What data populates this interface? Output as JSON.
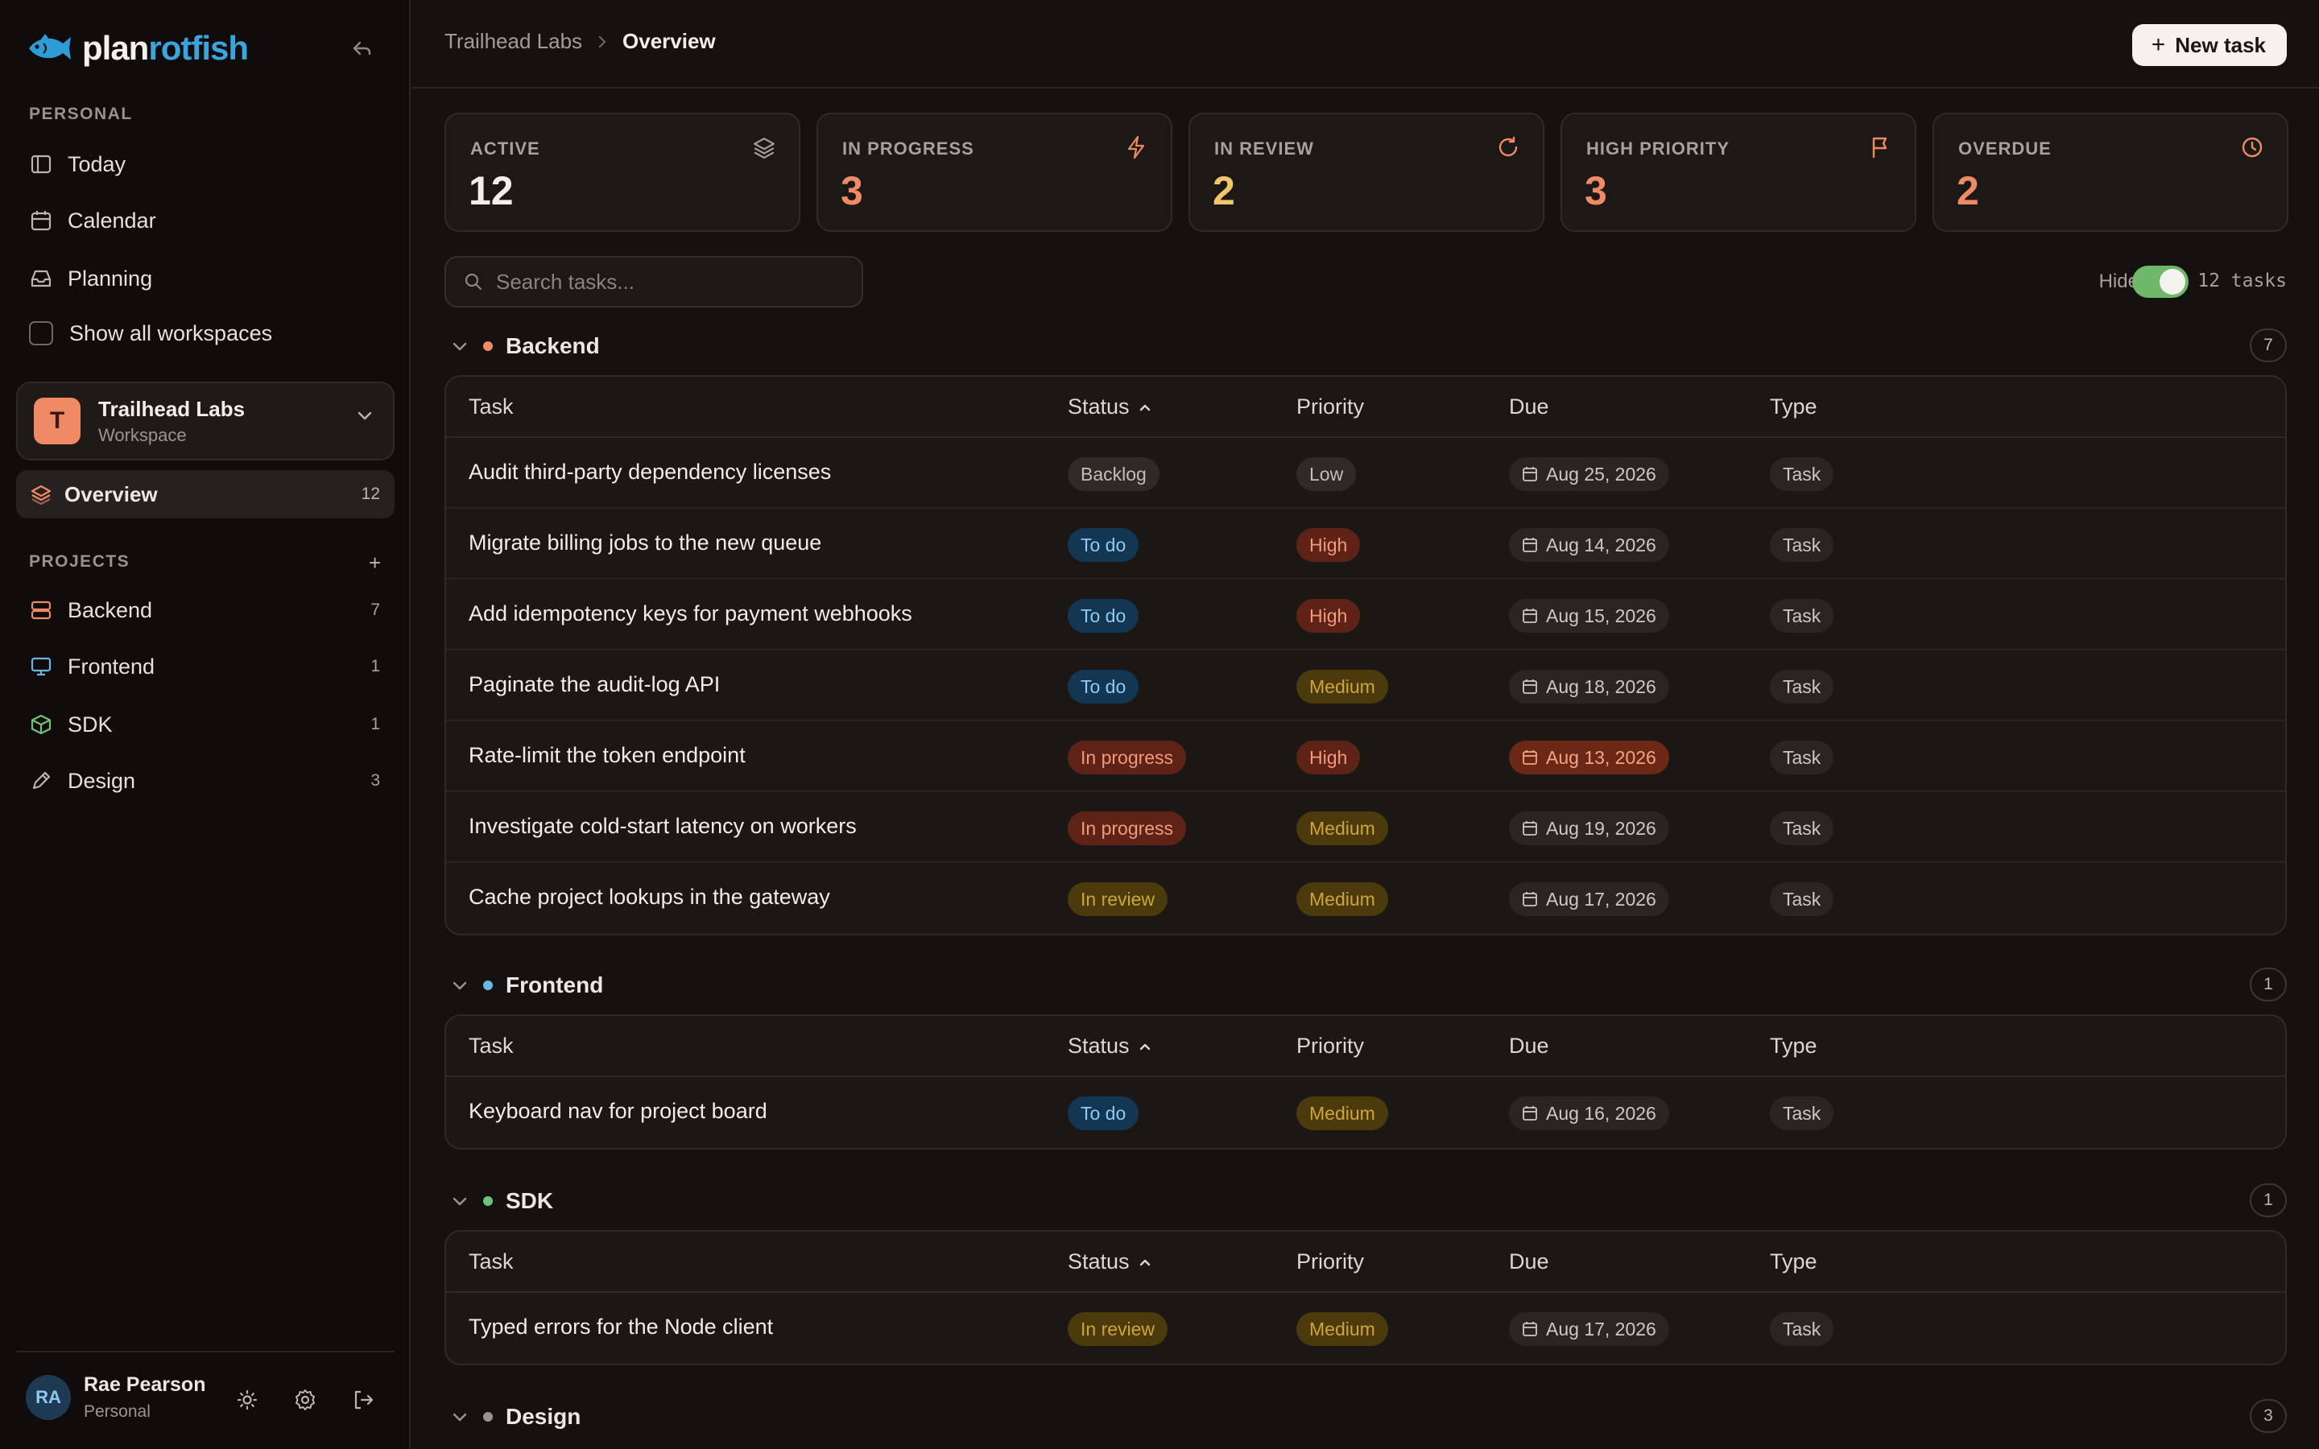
{
  "app": {
    "brand_part1": "plan",
    "brand_part2": "rotfish"
  },
  "sidebar": {
    "personal_label": "PERSONAL",
    "today": "Today",
    "calendar": "Calendar",
    "planning": "Planning",
    "show_all": "Show all workspaces",
    "workspace": {
      "initial": "T",
      "name": "Trailhead Labs",
      "sub": "Workspace"
    },
    "overview": {
      "label": "Overview",
      "count": "12"
    },
    "projects_label": "PROJECTS",
    "add_project": "+",
    "projects": [
      {
        "label": "Backend",
        "count": "7"
      },
      {
        "label": "Frontend",
        "count": "1"
      },
      {
        "label": "SDK",
        "count": "1"
      },
      {
        "label": "Design",
        "count": "3"
      }
    ],
    "user": {
      "initials": "RA",
      "name": "Rae Pearson",
      "sub": "Personal"
    }
  },
  "header": {
    "crumb_workspace": "Trailhead Labs",
    "crumb_page": "Overview",
    "new_task": "New task"
  },
  "stats": [
    {
      "label": "ACTIVE",
      "value": "12",
      "icon": "layers-icon",
      "color": "#f3eeea"
    },
    {
      "label": "IN PROGRESS",
      "value": "3",
      "icon": "bolt-icon",
      "color": "#f08a66"
    },
    {
      "label": "IN REVIEW",
      "value": "2",
      "icon": "refresh-icon",
      "color": "#f3c56b"
    },
    {
      "label": "HIGH PRIORITY",
      "value": "3",
      "icon": "flag-icon",
      "color": "#f08a66"
    },
    {
      "label": "OVERDUE",
      "value": "2",
      "icon": "clock-icon",
      "color": "#f08a66"
    }
  ],
  "toolbar": {
    "search_placeholder": "Search tasks...",
    "hide_done": "Hide done",
    "hide_done_on": true,
    "task_count": "12 tasks"
  },
  "columns": {
    "task": "Task",
    "status": "Status",
    "priority": "Priority",
    "due": "Due",
    "type": "Type"
  },
  "groups": [
    {
      "name": "Backend",
      "count": "7",
      "dot": "#f08a66",
      "rows": [
        {
          "task": "Audit third-party dependency licenses",
          "status": "Backlog",
          "priority": "Low",
          "due": "Aug 25, 2026",
          "type": "Task"
        },
        {
          "task": "Migrate billing jobs to the new queue",
          "status": "To do",
          "priority": "High",
          "due": "Aug 14, 2026",
          "type": "Task"
        },
        {
          "task": "Add idempotency keys for payment webhooks",
          "status": "To do",
          "priority": "High",
          "due": "Aug 15, 2026",
          "type": "Task"
        },
        {
          "task": "Paginate the audit-log API",
          "status": "To do",
          "priority": "Medium",
          "due": "Aug 18, 2026",
          "type": "Task"
        },
        {
          "task": "Rate-limit the token endpoint",
          "status": "In progress",
          "priority": "High",
          "due": "Aug 13, 2026",
          "type": "Task"
        },
        {
          "task": "Investigate cold-start latency on workers",
          "status": "In progress",
          "priority": "Medium",
          "due": "Aug 19, 2026",
          "type": "Task"
        },
        {
          "task": "Cache project lookups in the gateway",
          "status": "In review",
          "priority": "Medium",
          "due": "Aug 17, 2026",
          "type": "Task"
        }
      ]
    },
    {
      "name": "Frontend",
      "count": "1",
      "dot": "#6cb6e6",
      "rows": [
        {
          "task": "Keyboard nav for project board",
          "status": "To do",
          "priority": "Medium",
          "due": "Aug 16, 2026",
          "type": "Task"
        }
      ]
    },
    {
      "name": "SDK",
      "count": "1",
      "dot": "#73c27a",
      "rows": [
        {
          "task": "Typed errors for the Node client",
          "status": "In review",
          "priority": "Medium",
          "due": "Aug 17, 2026",
          "type": "Task"
        }
      ]
    },
    {
      "name": "Design",
      "count": "3",
      "dot": "#9a938e",
      "rows": []
    }
  ]
}
